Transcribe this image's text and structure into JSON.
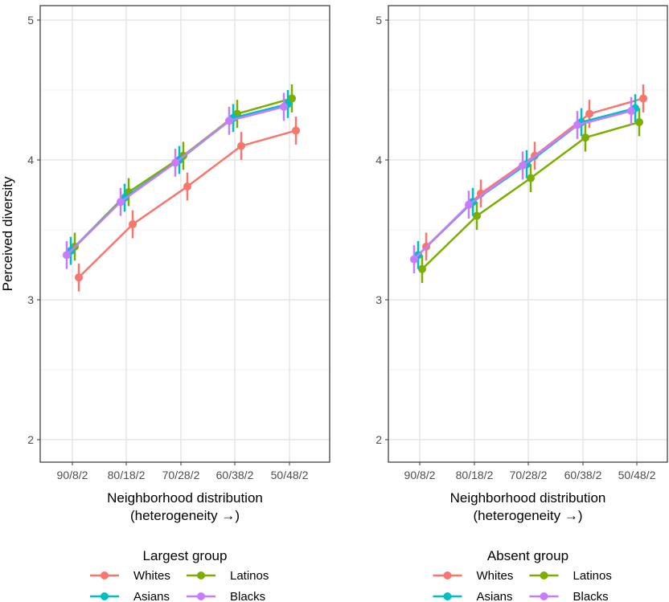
{
  "chart_data": [
    {
      "type": "line",
      "ylabel": "Perceived diversity",
      "xlabel": "Neighborhood distribution",
      "xlabel2": "(heterogeneity →)",
      "categories": [
        "90/8/2",
        "80/18/2",
        "70/28/2",
        "60/38/2",
        "50/48/2"
      ],
      "ylim": [
        1.8,
        5.1
      ],
      "yticks": [
        "2",
        "3",
        "4",
        "5"
      ],
      "legend_title": "Largest group",
      "legend_position": "bottom",
      "series": [
        {
          "name": "Whites",
          "color": "#F8766D",
          "values": [
            3.16,
            3.54,
            3.81,
            4.1,
            4.21
          ]
        },
        {
          "name": "Latinos",
          "color": "#7CAE00",
          "values": [
            3.38,
            3.77,
            4.03,
            4.33,
            4.44
          ]
        },
        {
          "name": "Asians",
          "color": "#00BFC4",
          "values": [
            3.35,
            3.73,
            4.0,
            4.3,
            4.4
          ]
        },
        {
          "name": "Blacks",
          "color": "#C77CFF",
          "values": [
            3.32,
            3.7,
            3.98,
            4.28,
            4.38
          ]
        }
      ],
      "error": 0.1
    },
    {
      "type": "line",
      "ylabel": "",
      "xlabel": "Neighborhood distribution",
      "xlabel2": "(heterogeneity →)",
      "categories": [
        "90/8/2",
        "80/18/2",
        "70/28/2",
        "60/38/2",
        "50/48/2"
      ],
      "ylim": [
        1.8,
        5.1
      ],
      "yticks": [
        "2",
        "3",
        "4",
        "5"
      ],
      "legend_title": "Absent group",
      "legend_position": "bottom",
      "series": [
        {
          "name": "Whites",
          "color": "#F8766D",
          "values": [
            3.38,
            3.76,
            4.03,
            4.33,
            4.44
          ]
        },
        {
          "name": "Latinos",
          "color": "#7CAE00",
          "values": [
            3.22,
            3.6,
            3.87,
            4.16,
            4.27
          ]
        },
        {
          "name": "Asians",
          "color": "#00BFC4",
          "values": [
            3.32,
            3.7,
            3.97,
            4.27,
            4.37
          ]
        },
        {
          "name": "Blacks",
          "color": "#C77CFF",
          "values": [
            3.29,
            3.68,
            3.96,
            4.25,
            4.35
          ]
        }
      ],
      "error": 0.1
    }
  ]
}
